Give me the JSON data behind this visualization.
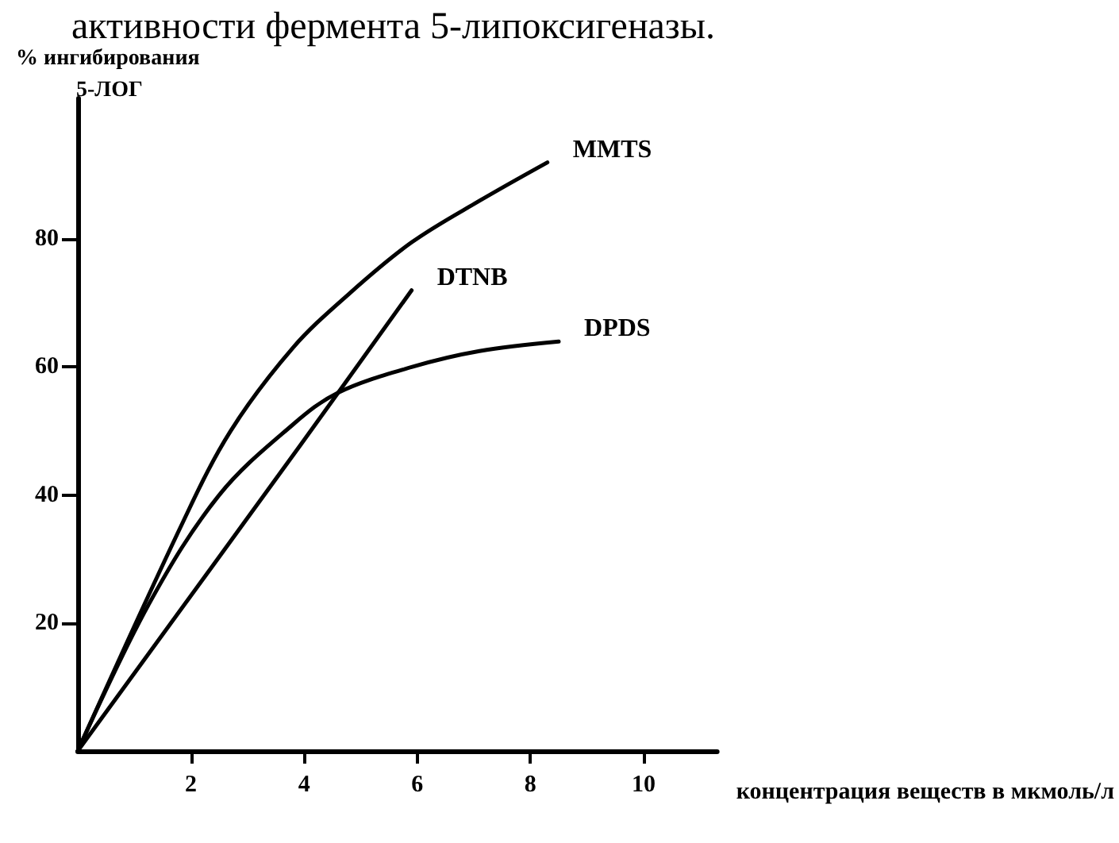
{
  "chart_data": {
    "type": "line",
    "title": "активности фермента 5-липоксигеназы.",
    "ylabel": "% ингибирования\n5-ЛОГ",
    "xlabel": "концентрация веществ в мкмоль/л",
    "xlim": [
      0,
      11.3
    ],
    "xticks": [
      2,
      4,
      6,
      8,
      10
    ],
    "ylim": [
      0,
      102
    ],
    "yticks": [
      20,
      40,
      60,
      80
    ],
    "grid": false,
    "legend": false,
    "marker": "none",
    "line_style": "solid",
    "series": [
      {
        "name": "MMTS",
        "color": "#000000",
        "x": [
          0,
          1.86,
          2.7,
          3.8,
          4.8,
          5.9,
          7.1,
          8.3
        ],
        "values": [
          0,
          35.8,
          50,
          63,
          71.5,
          79.5,
          86,
          92
        ]
      },
      {
        "name": "DTNB",
        "color": "#000000",
        "x": [
          0,
          3.95,
          5.9
        ],
        "values": [
          0,
          48,
          72
        ]
      },
      {
        "name": "DPDS",
        "color": "#000000",
        "x": [
          0,
          1.26,
          2.5,
          3.8,
          4.6,
          5.9,
          7.1,
          8.5
        ],
        "values": [
          0,
          23,
          40,
          51,
          56,
          60,
          62.5,
          64
        ]
      }
    ]
  }
}
